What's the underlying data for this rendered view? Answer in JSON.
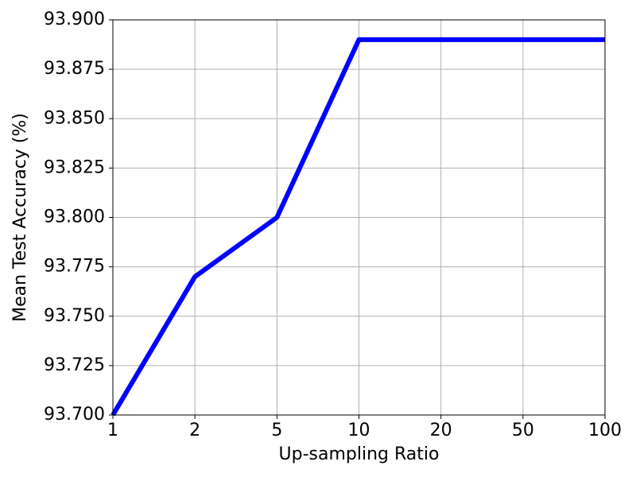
{
  "chart_data": {
    "type": "line",
    "xlabel": "Up-sampling Ratio",
    "ylabel": "Mean Test Accuracy (%)",
    "categories": [
      "1",
      "2",
      "5",
      "10",
      "20",
      "50",
      "100"
    ],
    "series": [
      {
        "color": "#0000ff",
        "values": [
          93.7,
          93.77,
          93.8,
          93.89,
          93.89,
          93.89,
          93.89
        ]
      }
    ],
    "ylim": [
      93.7,
      93.9
    ],
    "yticks": [
      {
        "value": 93.7,
        "label": "93.700"
      },
      {
        "value": 93.725,
        "label": "93.725"
      },
      {
        "value": 93.75,
        "label": "93.750"
      },
      {
        "value": 93.775,
        "label": "93.775"
      },
      {
        "value": 93.8,
        "label": "93.800"
      },
      {
        "value": 93.825,
        "label": "93.825"
      },
      {
        "value": 93.85,
        "label": "93.850"
      },
      {
        "value": 93.875,
        "label": "93.875"
      },
      {
        "value": 93.9,
        "label": "93.900"
      }
    ],
    "grid": true
  }
}
